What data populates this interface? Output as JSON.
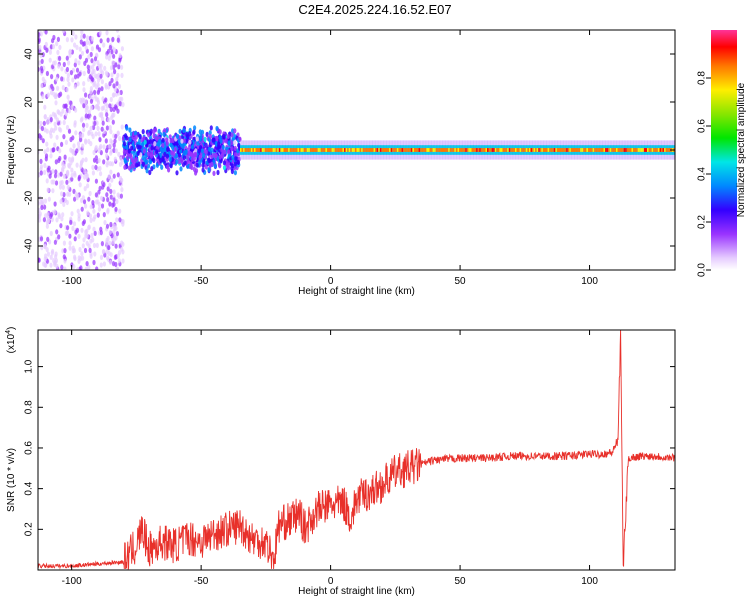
{
  "title": "C2E4.2025.224.16.52.E07",
  "chart_data": [
    {
      "type": "heatmap",
      "xlabel": "Height of straight line (km)",
      "ylabel": "Frequency (Hz)",
      "xlim": [
        -113,
        133
      ],
      "ylim": [
        -50,
        50
      ],
      "xticks": [
        -100,
        -50,
        0,
        50,
        100
      ],
      "yticks": [
        -40,
        -20,
        0,
        20,
        40
      ],
      "colorbar": {
        "label": "Normalized spectral amplitude",
        "range": [
          0,
          1
        ],
        "ticks": [
          0.0,
          0.2,
          0.4,
          0.6,
          0.8
        ]
      },
      "description_regions": [
        {
          "x_range": [
            -113,
            -80
          ],
          "freq_spread": 50,
          "amplitude": 0.15
        },
        {
          "x_range": [
            -80,
            -35
          ],
          "freq_spread": 10,
          "amplitude": 0.35
        },
        {
          "x_range": [
            -35,
            133
          ],
          "freq_spread": 2,
          "amplitude": 0.95
        }
      ]
    },
    {
      "type": "line",
      "xlabel": "Height of straight line (km)",
      "ylabel": "SNR (10 * v/v)",
      "y_multiplier": "(x10",
      "y_multiplier_exp": "4",
      "y_multiplier_close": ")",
      "xlim": [
        -113,
        133
      ],
      "ylim": [
        0,
        1.18
      ],
      "xticks": [
        -100,
        -50,
        0,
        50,
        100
      ],
      "yticks": [
        0.2,
        0.4,
        0.6,
        0.8,
        1.0
      ],
      "series": [
        {
          "color": "#e8302a",
          "x": [
            -113,
            -100,
            -90,
            -80,
            -75,
            -73,
            -70,
            -65,
            -60,
            -55,
            -50,
            -45,
            -40,
            -35,
            -30,
            -25,
            -22,
            -20,
            -15,
            -12,
            -10,
            -5,
            0,
            5,
            8,
            10,
            15,
            20,
            25,
            30,
            35,
            40,
            50,
            60,
            70,
            80,
            90,
            100,
            105,
            109,
            111,
            112,
            113,
            115,
            120,
            125,
            133
          ],
          "y": [
            0.02,
            0.02,
            0.03,
            0.04,
            0.12,
            0.2,
            0.1,
            0.14,
            0.12,
            0.16,
            0.14,
            0.18,
            0.2,
            0.22,
            0.15,
            0.14,
            0.05,
            0.22,
            0.25,
            0.28,
            0.2,
            0.3,
            0.32,
            0.33,
            0.25,
            0.35,
            0.38,
            0.42,
            0.48,
            0.5,
            0.52,
            0.54,
            0.55,
            0.55,
            0.56,
            0.56,
            0.56,
            0.57,
            0.57,
            0.58,
            0.65,
            1.15,
            0.02,
            0.55,
            0.56,
            0.56,
            0.55
          ]
        }
      ]
    }
  ]
}
